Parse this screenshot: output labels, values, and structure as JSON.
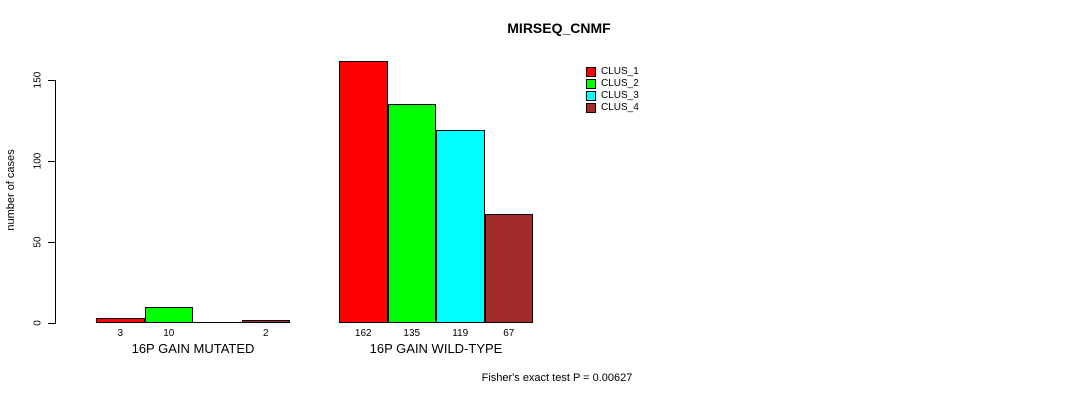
{
  "chart_data": {
    "type": "bar",
    "title": "MIRSEQ_CNMF",
    "ylabel": "number of cases",
    "ylim": [
      0,
      150
    ],
    "yticks": [
      0,
      50,
      100,
      150
    ],
    "grid": false,
    "legend_position": "top-right",
    "categories": [
      "16P GAIN MUTATED",
      "16P GAIN WILD-TYPE"
    ],
    "series": [
      {
        "name": "CLUS_1",
        "color": "#FF0000",
        "values": [
          3,
          162
        ]
      },
      {
        "name": "CLUS_2",
        "color": "#00FF00",
        "values": [
          10,
          135
        ]
      },
      {
        "name": "CLUS_3",
        "color": "#00FFFF",
        "values": [
          0,
          119
        ]
      },
      {
        "name": "CLUS_4",
        "color": "#A52A2A",
        "values": [
          2,
          67
        ]
      }
    ],
    "bar_value_labels": [
      [
        "3",
        "10",
        "",
        "2"
      ],
      [
        "162",
        "135",
        "119",
        "67"
      ]
    ],
    "annotation": "Fisher's exact test P = 0.00627"
  }
}
